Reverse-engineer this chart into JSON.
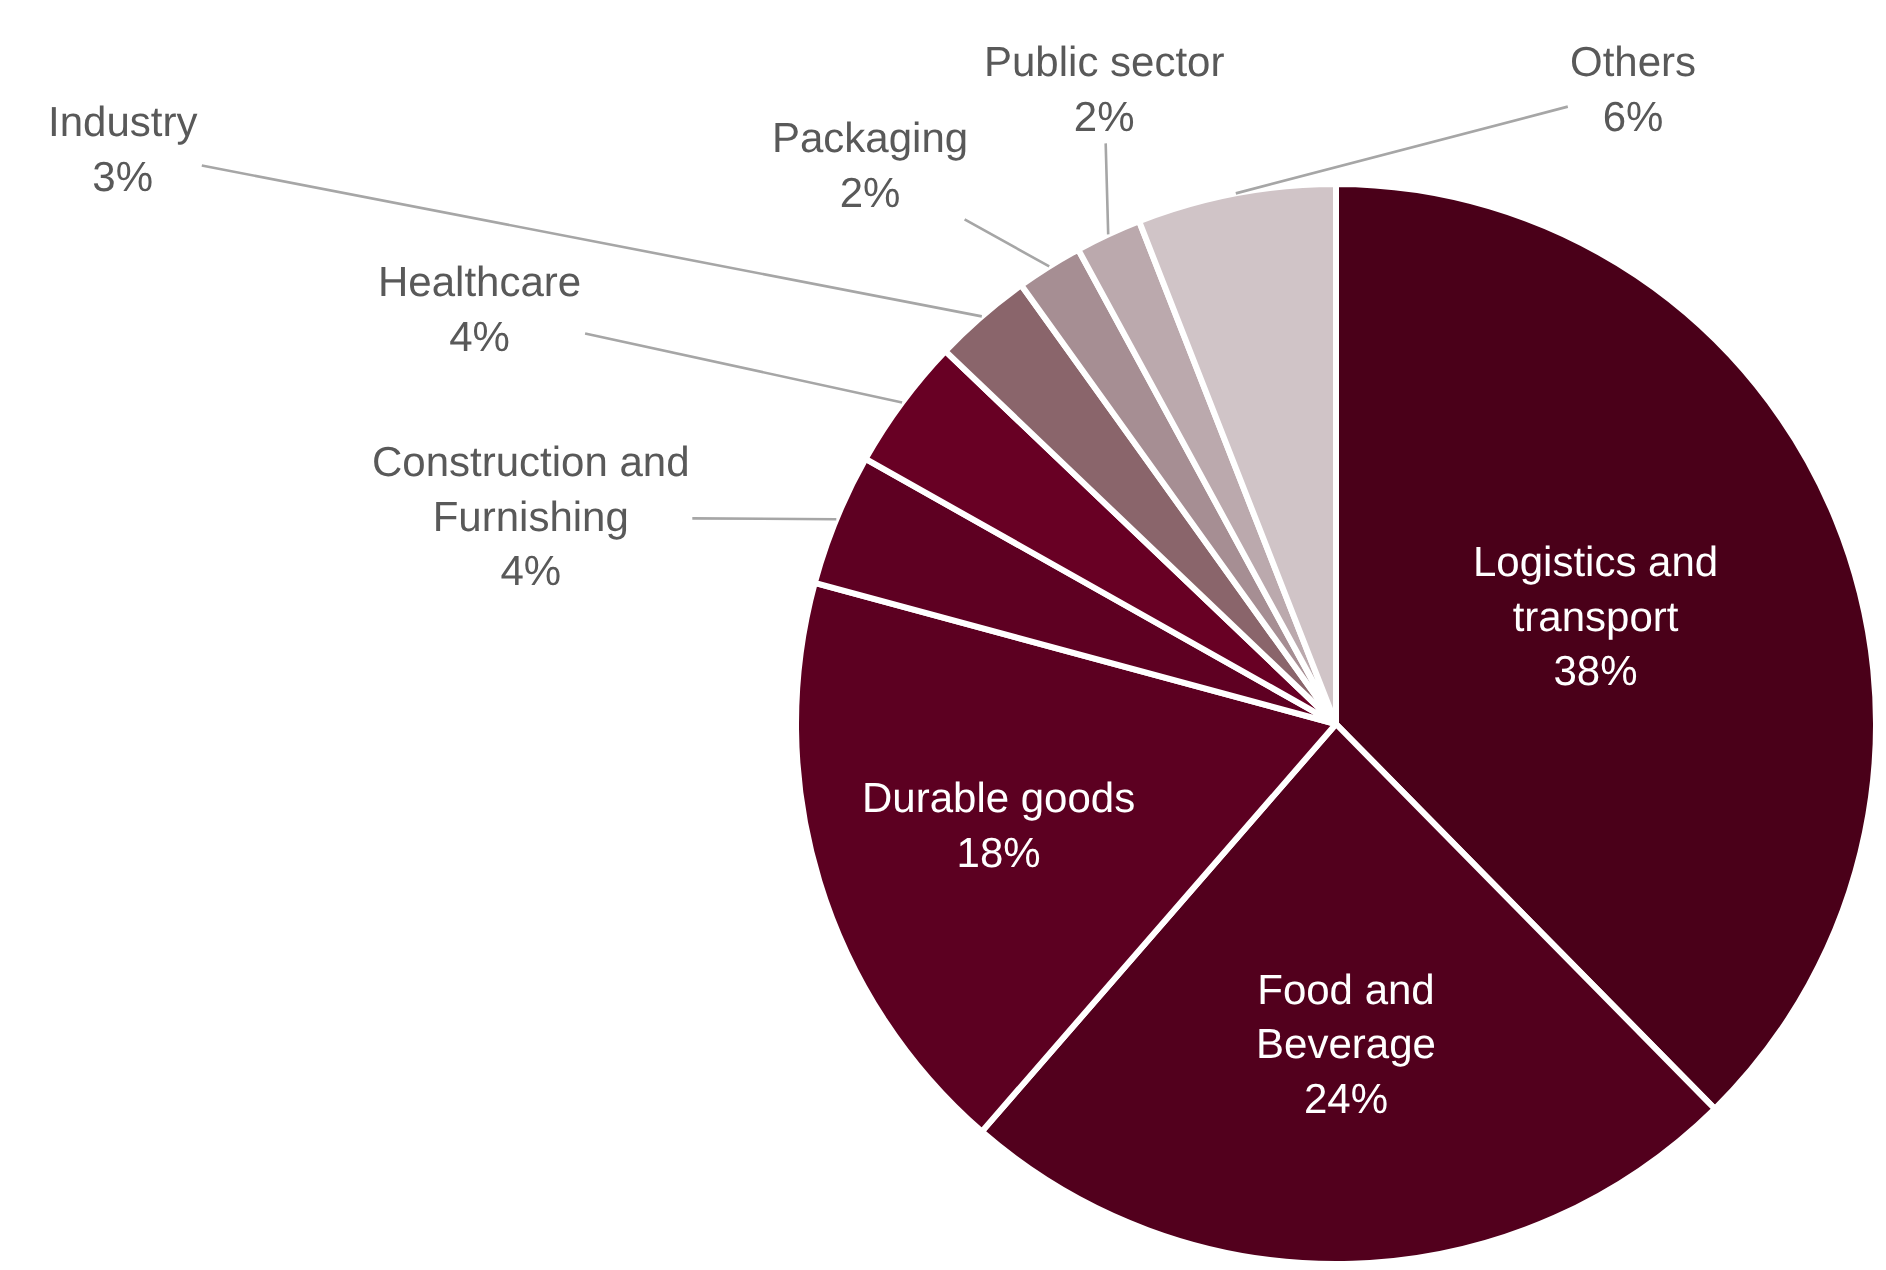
{
  "chart_data": {
    "type": "pie",
    "categories": [
      "Logistics and transport",
      "Food and Beverage",
      "Durable goods",
      "Construction and Furnishing",
      "Healthcare",
      "Industry",
      "Packaging",
      "Public sector",
      "Others"
    ],
    "values": [
      38,
      24,
      18,
      4,
      4,
      3,
      2,
      2,
      6
    ],
    "value_labels": [
      "38%",
      "24%",
      "18%",
      "4%",
      "4%",
      "3%",
      "2%",
      "2%",
      "6%"
    ],
    "colors": [
      "#4a0019",
      "#52001d",
      "#5c0021",
      "#5e0022",
      "#680024",
      "#8a656b",
      "#a68e93",
      "#bba9ad",
      "#d0c4c7"
    ],
    "legend": false
  }
}
